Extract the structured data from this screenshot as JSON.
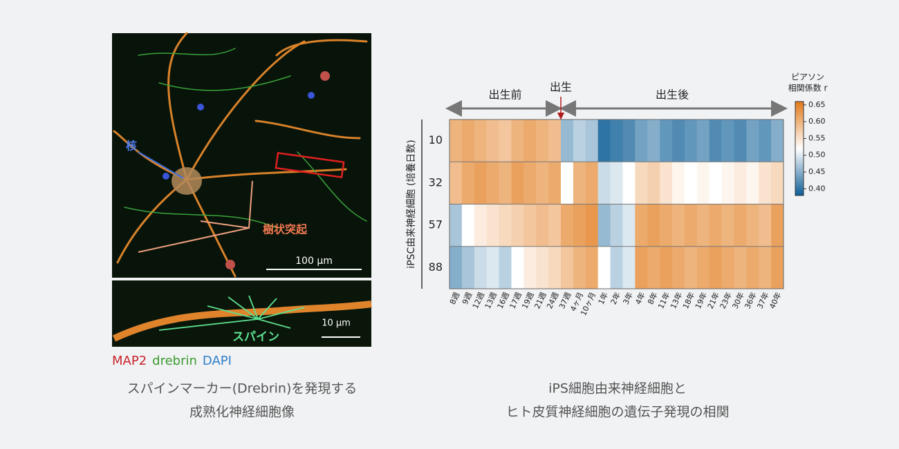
{
  "image": {
    "nucleus_label": "核",
    "dendrite_label": "樹状突起",
    "scale_large": "100 μm",
    "scale_small": "10 μm",
    "spine_label": "スパイン",
    "stains": [
      {
        "name": "MAP2",
        "color": "#c8242b"
      },
      {
        "name": "drebrin",
        "color": "#3a9a2e"
      },
      {
        "name": "DAPI",
        "color": "#2f7fc8"
      }
    ],
    "caption": [
      "スパインマーカー(Drebrin)を発現する",
      "成熟化神経細胞像"
    ]
  },
  "chart_data": {
    "type": "heatmap",
    "ylabel": "iPSC由来神経細胞 (培養日数)",
    "prenatal_label": "出生前",
    "birth_label": "出生",
    "postnatal_label": "出生後",
    "colorbar_title": [
      "ピアソン",
      "相関係数 r"
    ],
    "categories": [
      "8週",
      "9週",
      "12週",
      "13週",
      "16週",
      "17週",
      "19週",
      "21週",
      "24週",
      "37週",
      "4ヶ月",
      "10ヶ月",
      "1年",
      "2年",
      "3年",
      "4年",
      "8年",
      "11年",
      "13年",
      "18年",
      "19年",
      "21年",
      "23年",
      "30年",
      "36年",
      "37年",
      "40年"
    ],
    "y_categories": [
      10,
      32,
      57,
      88
    ],
    "values": [
      [
        0.6,
        0.61,
        0.6,
        0.59,
        0.58,
        0.6,
        0.61,
        0.6,
        0.59,
        0.46,
        0.48,
        0.47,
        0.4,
        0.41,
        0.42,
        0.44,
        0.45,
        0.43,
        0.42,
        0.43,
        0.44,
        0.42,
        0.43,
        0.42,
        0.44,
        0.43,
        0.45
      ],
      [
        0.59,
        0.61,
        0.62,
        0.61,
        0.6,
        0.62,
        0.61,
        0.6,
        0.61,
        0.52,
        0.6,
        0.61,
        0.49,
        0.5,
        0.52,
        0.56,
        0.57,
        0.55,
        0.53,
        0.52,
        0.53,
        0.52,
        0.53,
        0.54,
        0.53,
        0.55,
        0.56
      ],
      [
        0.47,
        0.52,
        0.54,
        0.55,
        0.56,
        0.57,
        0.58,
        0.59,
        0.58,
        0.61,
        0.62,
        0.63,
        0.46,
        0.48,
        0.5,
        0.61,
        0.62,
        0.61,
        0.6,
        0.61,
        0.6,
        0.61,
        0.6,
        0.61,
        0.6,
        0.59,
        0.62
      ],
      [
        0.45,
        0.47,
        0.49,
        0.5,
        0.48,
        0.52,
        0.54,
        0.55,
        0.56,
        0.58,
        0.6,
        0.61,
        0.52,
        0.48,
        0.5,
        0.62,
        0.61,
        0.62,
        0.61,
        0.6,
        0.61,
        0.62,
        0.61,
        0.6,
        0.61,
        0.6,
        0.62
      ]
    ],
    "clim": [
      0.38,
      0.66
    ],
    "cticks": [
      {
        "value": 0.4,
        "label": "0.40"
      },
      0.45,
      {
        "value": 0.5,
        "label": "0.50"
      },
      0.55,
      {
        "value": 0.6,
        "label": "0.60"
      },
      0.65
    ],
    "colors": [
      "#0b5d96",
      "#ffffff",
      "#e27b1c"
    ]
  },
  "caption": [
    "iPS細胞由来神経細胞と",
    "ヒト皮質神経細胞の遺伝子発現の相関"
  ]
}
